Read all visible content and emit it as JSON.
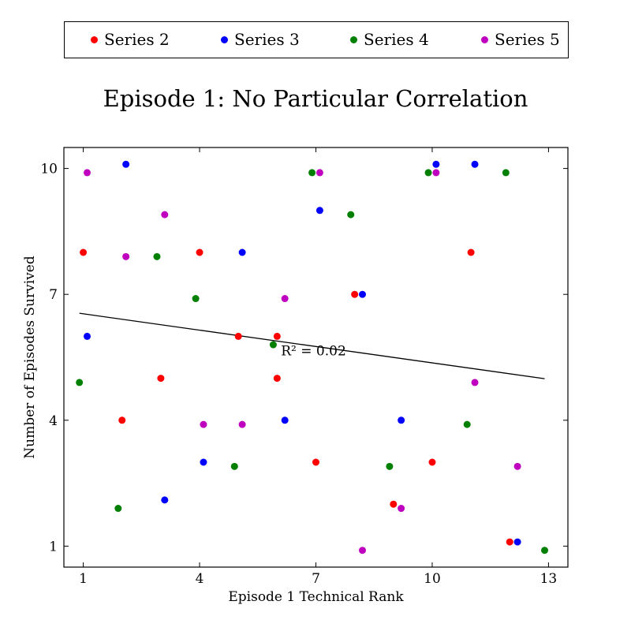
{
  "chart_data": {
    "type": "scatter",
    "title": "Episode 1: No Particular Correlation",
    "xlabel": "Episode 1 Technical Rank",
    "ylabel": "Number of Episodes Survived",
    "xlim": [
      0.5,
      13.5
    ],
    "ylim": [
      0.5,
      10.5
    ],
    "xticks": [
      1,
      4,
      7,
      10,
      13
    ],
    "yticks": [
      1,
      4,
      7,
      10
    ],
    "legend_position": "top, outside plot",
    "series": [
      {
        "name": "Series 2",
        "color": "#ff0000",
        "x": [
          1,
          2,
          3,
          4,
          5,
          6,
          6,
          7,
          8,
          9,
          10,
          11,
          12
        ],
        "y": [
          8,
          4,
          5,
          8,
          6,
          5,
          6,
          3,
          7,
          2,
          3,
          8,
          1.1
        ]
      },
      {
        "name": "Series 3",
        "color": "#0000ff",
        "x": [
          1.1,
          2.1,
          3.1,
          4.1,
          5.1,
          6.2,
          7.1,
          8.2,
          9.2,
          10.1,
          11.1,
          12.2
        ],
        "y": [
          6,
          10.1,
          2.1,
          3,
          8,
          4,
          9,
          7,
          4,
          10.1,
          10.1,
          1.1
        ]
      },
      {
        "name": "Series 4",
        "color": "#008000",
        "x": [
          0.9,
          1.9,
          2.9,
          3.9,
          4.9,
          5.9,
          6.9,
          7.9,
          8.9,
          9.9,
          10.9,
          11.9,
          12.9
        ],
        "y": [
          4.9,
          1.9,
          7.9,
          6.9,
          2.9,
          5.8,
          9.9,
          8.9,
          2.9,
          9.9,
          3.9,
          9.9,
          0.9
        ]
      },
      {
        "name": "Series 5",
        "color": "#bf00bf",
        "x": [
          1.1,
          2.1,
          3.1,
          4.1,
          5.1,
          6.2,
          7.1,
          8.2,
          9.2,
          10.1,
          11.1,
          12.2
        ],
        "y": [
          9.9,
          7.9,
          8.9,
          3.9,
          3.9,
          6.9,
          9.9,
          0.9,
          1.9,
          9.9,
          4.9,
          2.9
        ]
      }
    ],
    "trendline": {
      "x": [
        0.9,
        12.9
      ],
      "y": [
        6.55,
        4.99
      ],
      "color": "#000000"
    },
    "annotation": {
      "text": "R² = 0.02",
      "x": 6.1,
      "y": 5.55
    }
  }
}
